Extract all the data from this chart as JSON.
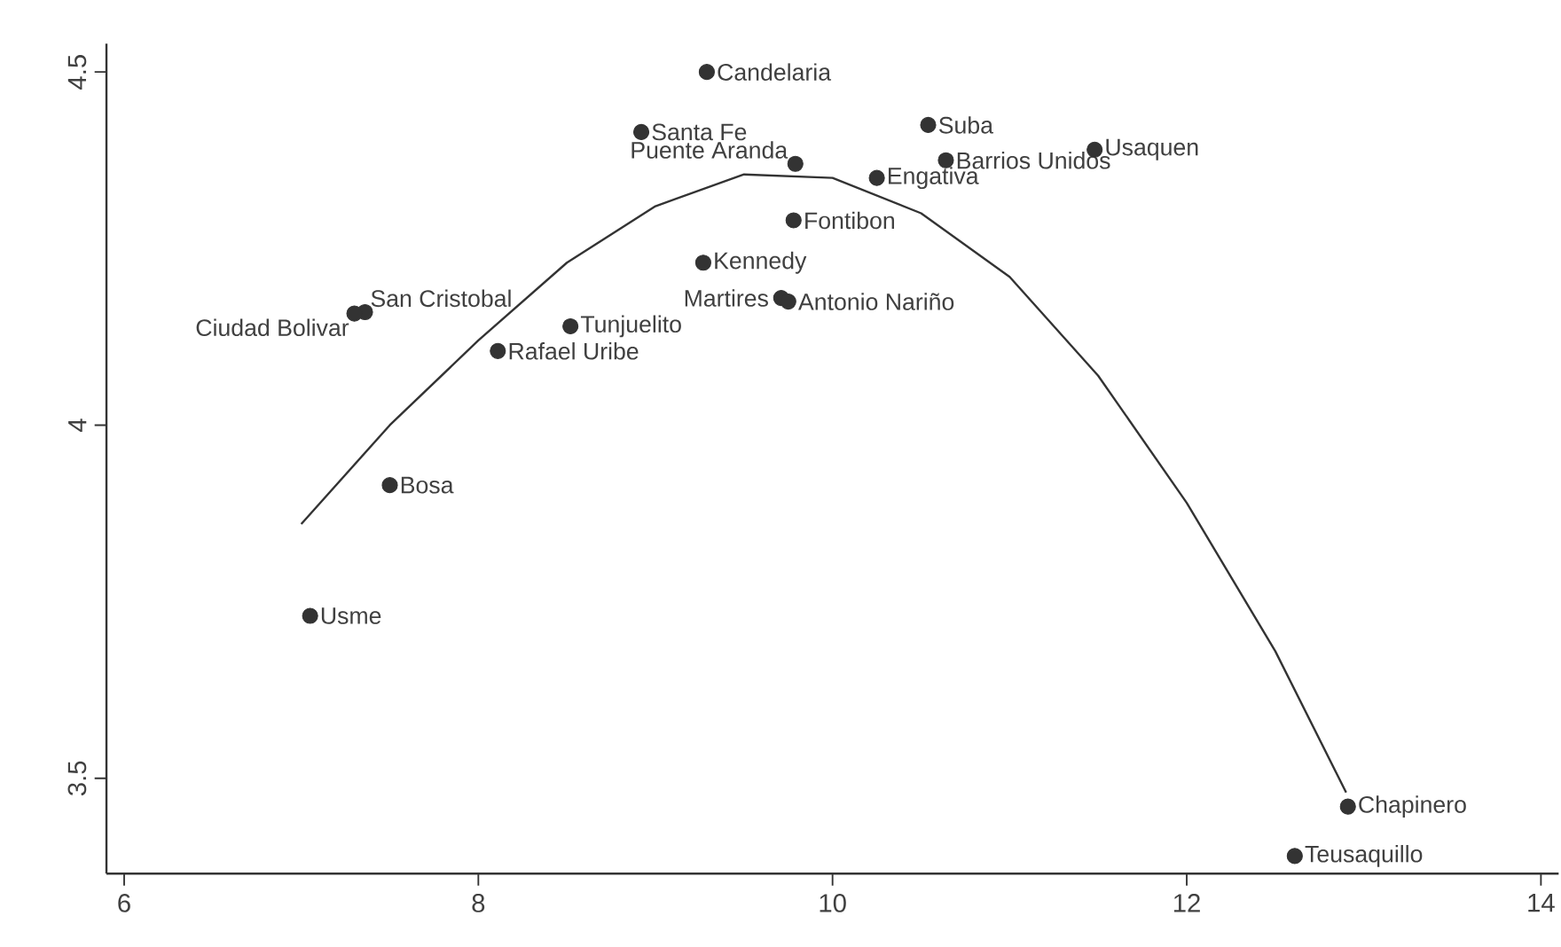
{
  "chart_data": {
    "type": "scatter",
    "xlim": [
      5.9,
      14.1
    ],
    "ylim": [
      3.365,
      4.54
    ],
    "xticks": [
      6,
      8,
      10,
      12,
      14
    ],
    "yticks": [
      3.5,
      4,
      4.5
    ],
    "grid": false,
    "series": [
      {
        "color": "#333333",
        "marker": "circle",
        "x": [
          9.29,
          8.92,
          10.54,
          11.48,
          10.64,
          9.79,
          10.25,
          9.78,
          9.27,
          9.71,
          9.75,
          7.36,
          7.3,
          8.52,
          8.11,
          7.5,
          7.05,
          12.91,
          12.61
        ],
        "values": [
          4.5,
          4.415,
          4.425,
          4.39,
          4.375,
          4.37,
          4.35,
          4.29,
          4.23,
          4.18,
          4.175,
          4.16,
          4.158,
          4.14,
          4.105,
          3.915,
          3.73,
          3.46,
          3.39
        ],
        "value_labels": [
          "Candelaria",
          "Santa Fe",
          "Suba",
          "Usaquen",
          "Barrios Unidos",
          "Puente Aranda",
          "Engativa",
          "Fontibon",
          "Kennedy",
          "Martires",
          "Antonio Nariño",
          "San Cristobal",
          "Ciudad Bolivar",
          "Tunjuelito",
          "Rafael Uribe",
          "Bosa",
          "Usme",
          "Chapinero",
          "Teusaquillo"
        ]
      },
      {
        "type": "line",
        "color": "#333333",
        "marker": "none",
        "line_style": "solid",
        "x": [
          7.0,
          7.5,
          8,
          8.5,
          9,
          9.5,
          10,
          10.5,
          11,
          11.5,
          12,
          12.5,
          12.9
        ],
        "values": [
          3.86,
          4.0,
          4.12,
          4.23,
          4.31,
          4.355,
          4.35,
          4.3,
          4.21,
          4.07,
          3.89,
          3.68,
          3.48
        ]
      }
    ]
  }
}
